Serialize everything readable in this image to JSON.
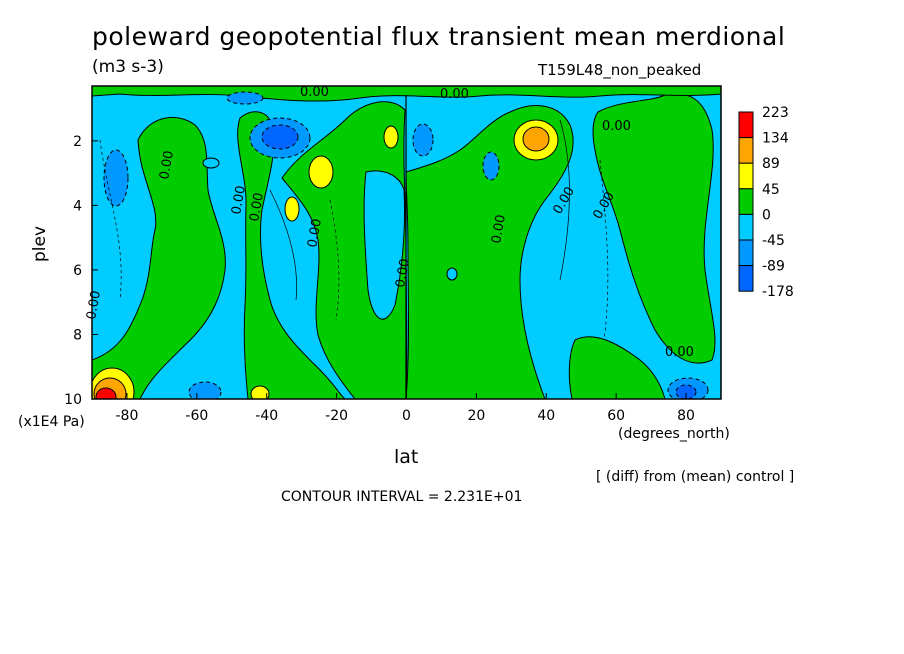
{
  "chart_data": {
    "type": "heatmap",
    "title": "poleward geopotential flux transient mean merdional",
    "units": "(m3 s-3)",
    "run_label": "T159L48_non_peaked",
    "xlabel": "lat",
    "xunits": "(degrees_north)",
    "ylabel": "plev",
    "yunits": "(x1E4 Pa)",
    "x_ticks": [
      -80,
      -60,
      -40,
      -20,
      0,
      20,
      40,
      60,
      80
    ],
    "y_ticks": [
      2,
      4,
      6,
      8,
      10
    ],
    "xlim": [
      -90,
      90
    ],
    "ylim": [
      10,
      0.3
    ],
    "legend": {
      "levels": [
        "223",
        "134",
        "89",
        "45",
        "0",
        "-45",
        "-89",
        "-178"
      ],
      "colors": [
        "#ff0000",
        "#ffa500",
        "#ffff00",
        "#00cc00",
        "#00ccff",
        "#0099ff",
        "#0066ff"
      ]
    },
    "contour_labels": [
      "0.00"
    ],
    "notes": "[ (diff) from (mean) control ]",
    "contour_interval": "CONTOUR INTERVAL = 2.231E+01"
  },
  "labels": {
    "diff_note": "[ (diff) from (mean) control ]",
    "contour_interval": "CONTOUR INTERVAL = 2.231E+01"
  }
}
